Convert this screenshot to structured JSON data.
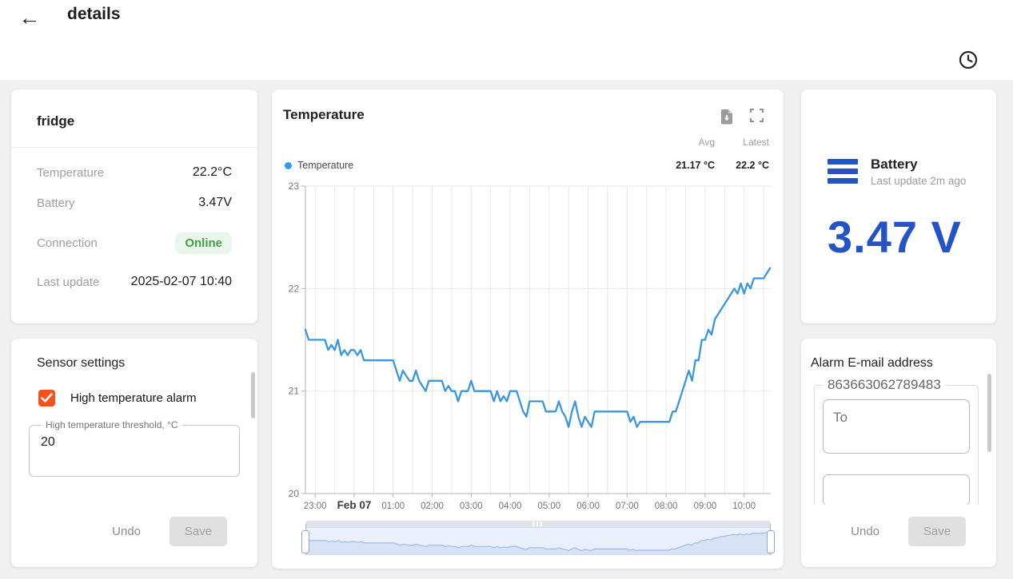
{
  "header": {
    "title": "details"
  },
  "device_card": {
    "title": "fridge",
    "rows": [
      {
        "label": "Temperature",
        "value": "22.2°C"
      },
      {
        "label": "Battery",
        "value": "3.47V"
      },
      {
        "label": "Connection",
        "value": "Online"
      },
      {
        "label": "Last update",
        "value": "2025-02-07 10:40"
      }
    ]
  },
  "sensor_settings": {
    "title": "Sensor settings",
    "checkbox_label": "High temperature alarm",
    "checkbox_checked": true,
    "threshold_label": "High temperature threshold, °C",
    "threshold_value": "20",
    "undo_label": "Undo",
    "save_label": "Save"
  },
  "chart_card": {
    "title": "Temperature",
    "avg_header": "Avg",
    "latest_header": "Latest",
    "legend_name": "Temperature",
    "avg_value": "21.17 °C",
    "latest_value": "22.2 °C"
  },
  "battery_card": {
    "title": "Battery",
    "subtitle": "Last update 2m ago",
    "value": "3.47 V"
  },
  "email_card": {
    "title": "Alarm E-mail address",
    "device_id": "863663062789483",
    "to_placeholder": "To",
    "undo_label": "Undo",
    "save_label": "Save"
  },
  "colors": {
    "brand_blue": "#2353c4",
    "line_blue": "#3b96dc",
    "dot_blue": "#2e9bf0",
    "accent_orange": "#f4511e",
    "green": "#43a047"
  },
  "chart_data": {
    "type": "line",
    "title": "Temperature",
    "ylabel": "°C",
    "ylim": [
      20,
      23
    ],
    "y_ticks": [
      20,
      21,
      22,
      23
    ],
    "t_min": 0,
    "t_max": 716,
    "x_unit": "minutes since 2025-02-06 22:45",
    "grid": true,
    "legend_position": "top",
    "avg": 21.17,
    "latest": 22.2,
    "x_ticks": [
      {
        "t": 15,
        "label": "23:00"
      },
      {
        "t": 75,
        "label": "Feb 07",
        "bold": true
      },
      {
        "t": 135,
        "label": "01:00"
      },
      {
        "t": 195,
        "label": "02:00"
      },
      {
        "t": 255,
        "label": "03:00"
      },
      {
        "t": 315,
        "label": "04:00"
      },
      {
        "t": 375,
        "label": "05:00"
      },
      {
        "t": 435,
        "label": "06:00"
      },
      {
        "t": 495,
        "label": "07:00"
      },
      {
        "t": 555,
        "label": "08:00"
      },
      {
        "t": 615,
        "label": "09:00"
      },
      {
        "t": 675,
        "label": "10:00"
      }
    ],
    "series": [
      {
        "name": "Temperature",
        "color": "#3b96dc",
        "points": [
          [
            0,
            21.6
          ],
          [
            5,
            21.5
          ],
          [
            10,
            21.5
          ],
          [
            15,
            21.5
          ],
          [
            20,
            21.5
          ],
          [
            25,
            21.5
          ],
          [
            30,
            21.5
          ],
          [
            35,
            21.4
          ],
          [
            40,
            21.45
          ],
          [
            45,
            21.4
          ],
          [
            50,
            21.5
          ],
          [
            55,
            21.35
          ],
          [
            60,
            21.4
          ],
          [
            65,
            21.35
          ],
          [
            70,
            21.4
          ],
          [
            75,
            21.4
          ],
          [
            80,
            21.35
          ],
          [
            85,
            21.4
          ],
          [
            90,
            21.3
          ],
          [
            95,
            21.3
          ],
          [
            100,
            21.3
          ],
          [
            105,
            21.3
          ],
          [
            110,
            21.3
          ],
          [
            115,
            21.3
          ],
          [
            120,
            21.3
          ],
          [
            125,
            21.3
          ],
          [
            130,
            21.3
          ],
          [
            135,
            21.3
          ],
          [
            140,
            21.2
          ],
          [
            145,
            21.1
          ],
          [
            150,
            21.2
          ],
          [
            155,
            21.15
          ],
          [
            160,
            21.1
          ],
          [
            165,
            21.1
          ],
          [
            170,
            21.2
          ],
          [
            175,
            21.1
          ],
          [
            180,
            21.05
          ],
          [
            185,
            21.0
          ],
          [
            190,
            21.1
          ],
          [
            195,
            21.1
          ],
          [
            200,
            21.1
          ],
          [
            205,
            21.1
          ],
          [
            210,
            21.1
          ],
          [
            215,
            21.0
          ],
          [
            220,
            21.05
          ],
          [
            225,
            21.0
          ],
          [
            230,
            21.0
          ],
          [
            235,
            20.9
          ],
          [
            240,
            21.0
          ],
          [
            245,
            21.0
          ],
          [
            250,
            21.0
          ],
          [
            255,
            21.1
          ],
          [
            260,
            21.0
          ],
          [
            265,
            21.0
          ],
          [
            270,
            21.0
          ],
          [
            275,
            21.0
          ],
          [
            280,
            21.0
          ],
          [
            285,
            21.0
          ],
          [
            290,
            20.9
          ],
          [
            295,
            21.0
          ],
          [
            300,
            20.9
          ],
          [
            305,
            20.95
          ],
          [
            310,
            20.9
          ],
          [
            315,
            21.0
          ],
          [
            320,
            21.0
          ],
          [
            325,
            21.0
          ],
          [
            330,
            20.9
          ],
          [
            335,
            20.8
          ],
          [
            340,
            20.75
          ],
          [
            345,
            20.9
          ],
          [
            350,
            20.9
          ],
          [
            355,
            20.9
          ],
          [
            360,
            20.9
          ],
          [
            365,
            20.9
          ],
          [
            370,
            20.8
          ],
          [
            375,
            20.8
          ],
          [
            380,
            20.8
          ],
          [
            385,
            20.8
          ],
          [
            390,
            20.9
          ],
          [
            395,
            20.8
          ],
          [
            400,
            20.75
          ],
          [
            405,
            20.65
          ],
          [
            410,
            20.8
          ],
          [
            415,
            20.9
          ],
          [
            420,
            20.75
          ],
          [
            425,
            20.65
          ],
          [
            430,
            20.75
          ],
          [
            435,
            20.7
          ],
          [
            440,
            20.65
          ],
          [
            445,
            20.8
          ],
          [
            450,
            20.8
          ],
          [
            455,
            20.8
          ],
          [
            460,
            20.8
          ],
          [
            465,
            20.8
          ],
          [
            470,
            20.8
          ],
          [
            475,
            20.8
          ],
          [
            480,
            20.8
          ],
          [
            485,
            20.8
          ],
          [
            490,
            20.8
          ],
          [
            495,
            20.8
          ],
          [
            500,
            20.7
          ],
          [
            505,
            20.75
          ],
          [
            510,
            20.65
          ],
          [
            515,
            20.7
          ],
          [
            520,
            20.7
          ],
          [
            525,
            20.7
          ],
          [
            530,
            20.7
          ],
          [
            535,
            20.7
          ],
          [
            540,
            20.7
          ],
          [
            545,
            20.7
          ],
          [
            550,
            20.7
          ],
          [
            555,
            20.7
          ],
          [
            560,
            20.7
          ],
          [
            565,
            20.8
          ],
          [
            570,
            20.8
          ],
          [
            575,
            20.9
          ],
          [
            580,
            21.0
          ],
          [
            585,
            21.1
          ],
          [
            590,
            21.2
          ],
          [
            595,
            21.1
          ],
          [
            600,
            21.3
          ],
          [
            605,
            21.3
          ],
          [
            610,
            21.5
          ],
          [
            615,
            21.5
          ],
          [
            620,
            21.6
          ],
          [
            625,
            21.55
          ],
          [
            630,
            21.7
          ],
          [
            635,
            21.75
          ],
          [
            640,
            21.8
          ],
          [
            645,
            21.85
          ],
          [
            650,
            21.9
          ],
          [
            655,
            21.95
          ],
          [
            660,
            22.0
          ],
          [
            665,
            21.95
          ],
          [
            670,
            22.05
          ],
          [
            675,
            21.95
          ],
          [
            680,
            22.05
          ],
          [
            685,
            22.0
          ],
          [
            690,
            22.1
          ],
          [
            695,
            22.1
          ],
          [
            700,
            22.1
          ],
          [
            705,
            22.1
          ],
          [
            710,
            22.15
          ],
          [
            715,
            22.2
          ]
        ]
      }
    ]
  }
}
